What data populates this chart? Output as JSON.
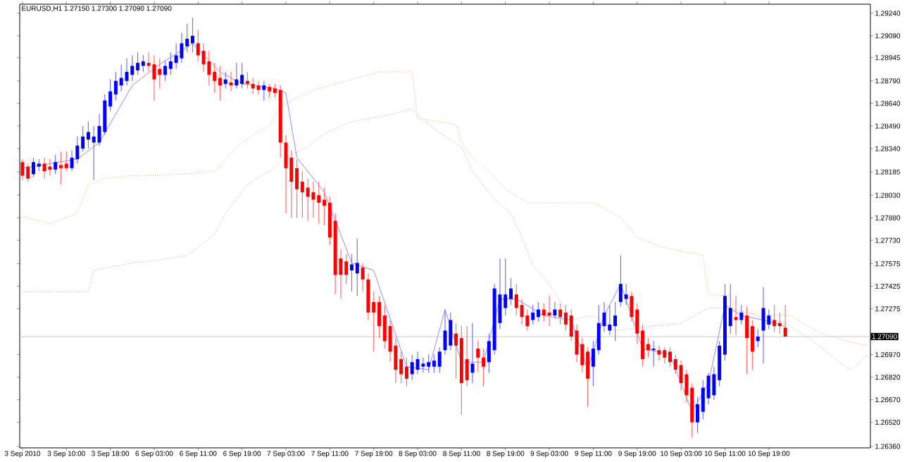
{
  "chart_data": {
    "type": "candlestick",
    "title": "EURUSD,H1  1.27150 1.27300 1.27090 1.27090",
    "categories": [
      "3 Sep 2010",
      null,
      null,
      null,
      null,
      null,
      null,
      null,
      "3 Sep 10:00",
      null,
      null,
      null,
      null,
      null,
      null,
      null,
      "3 Sep 18:00",
      null,
      null,
      null,
      null,
      null,
      null,
      null,
      "6 Sep 03:00",
      null,
      null,
      null,
      null,
      null,
      null,
      null,
      "6 Sep 11:00",
      null,
      null,
      null,
      null,
      null,
      null,
      null,
      "6 Sep 19:00",
      null,
      null,
      null,
      null,
      null,
      null,
      null,
      "7 Sep 03:00",
      null,
      null,
      null,
      null,
      null,
      null,
      null,
      "7 Sep 11:00",
      null,
      null,
      null,
      null,
      null,
      null,
      null,
      "7 Sep 19:00",
      null,
      null,
      null,
      null,
      null,
      null,
      null,
      "8 Sep 03:00",
      null,
      null,
      null,
      null,
      null,
      null,
      null,
      "8 Sep 11:00",
      null,
      null,
      null,
      null,
      null,
      null,
      null,
      "8 Sep 19:00",
      null,
      null,
      null,
      null,
      null,
      null,
      null,
      "9 Sep 03:00",
      null,
      null,
      null,
      null,
      null,
      null,
      null,
      "9 Sep 11:00",
      null,
      null,
      null,
      null,
      null,
      null,
      null,
      "9 Sep 19:00",
      null,
      null,
      null,
      null,
      null,
      null,
      null,
      "10 Sep 03:00",
      null,
      null,
      null,
      null,
      null,
      null,
      null,
      "10 Sep 11:00",
      null,
      null,
      null,
      null,
      null,
      null,
      null,
      "10 Sep 19:00",
      null,
      null,
      null,
      null,
      null,
      null,
      null,
      null,
      null,
      null,
      null,
      null,
      null,
      null,
      null,
      null,
      null,
      null
    ],
    "ohlc": [
      [
        1.2825,
        1.2827,
        1.2813,
        1.2816
      ],
      [
        1.2822,
        1.2824,
        1.2812,
        1.2814
      ],
      [
        1.2817,
        1.2828,
        1.2815,
        1.2825
      ],
      [
        1.2822,
        1.2827,
        1.2819,
        1.2824
      ],
      [
        1.2824,
        1.2828,
        1.2814,
        1.2819
      ],
      [
        1.2822,
        1.2827,
        1.2816,
        1.282
      ],
      [
        1.282,
        1.283,
        1.2817,
        1.2825
      ],
      [
        1.2823,
        1.2832,
        1.281,
        1.2821
      ],
      [
        1.2824,
        1.2832,
        1.2819,
        1.2821
      ],
      [
        1.2821,
        1.2833,
        1.2819,
        1.2828
      ],
      [
        1.2827,
        1.2842,
        1.2824,
        1.2836
      ],
      [
        1.2834,
        1.2849,
        1.2832,
        1.2842
      ],
      [
        1.284,
        1.2852,
        1.2834,
        1.2845
      ],
      [
        1.2838,
        1.2849,
        1.2813,
        1.2842
      ],
      [
        1.2838,
        1.2857,
        1.2836,
        1.2849
      ],
      [
        1.2845,
        1.287,
        1.2843,
        1.2866
      ],
      [
        1.2862,
        1.288,
        1.2859,
        1.2872
      ],
      [
        1.287,
        1.2885,
        1.2866,
        1.2879
      ],
      [
        1.2876,
        1.289,
        1.2872,
        1.2881
      ],
      [
        1.2879,
        1.2894,
        1.2876,
        1.2885
      ],
      [
        1.2883,
        1.2896,
        1.2879,
        1.2889
      ],
      [
        1.2886,
        1.2898,
        1.2883,
        1.2891
      ],
      [
        1.2889,
        1.2896,
        1.2885,
        1.2892
      ],
      [
        1.2891,
        1.2898,
        1.2885,
        1.2889
      ],
      [
        1.289,
        1.2896,
        1.2866,
        1.288
      ],
      [
        1.2887,
        1.2894,
        1.2874,
        1.2883
      ],
      [
        1.2883,
        1.2892,
        1.2879,
        1.2889
      ],
      [
        1.2887,
        1.2898,
        1.2883,
        1.2892
      ],
      [
        1.2891,
        1.2904,
        1.2887,
        1.2896
      ],
      [
        1.2894,
        1.2911,
        1.2891,
        1.2904
      ],
      [
        1.2902,
        1.2917,
        1.2898,
        1.2907
      ],
      [
        1.2904,
        1.2921,
        1.2898,
        1.2909
      ],
      [
        1.2904,
        1.2913,
        1.2892,
        1.2896
      ],
      [
        1.2899,
        1.2904,
        1.2885,
        1.289
      ],
      [
        1.2892,
        1.2899,
        1.2876,
        1.2883
      ],
      [
        1.2885,
        1.2891,
        1.2871,
        1.2879
      ],
      [
        1.2881,
        1.2889,
        1.2866,
        1.2876
      ],
      [
        1.2877,
        1.2885,
        1.2874,
        1.288
      ],
      [
        1.2878,
        1.2885,
        1.2872,
        1.2876
      ],
      [
        1.2876,
        1.2891,
        1.2874,
        1.288
      ],
      [
        1.2877,
        1.2891,
        1.2874,
        1.2883
      ],
      [
        1.2879,
        1.2885,
        1.2874,
        1.2877
      ],
      [
        1.2877,
        1.2881,
        1.287,
        1.2874
      ],
      [
        1.2876,
        1.2879,
        1.287,
        1.2873
      ],
      [
        1.2873,
        1.2879,
        1.2866,
        1.2876
      ],
      [
        1.2875,
        1.2877,
        1.2868,
        1.2872
      ],
      [
        1.2874,
        1.2877,
        1.2868,
        1.2871
      ],
      [
        1.2873,
        1.2876,
        1.2828,
        1.2838
      ],
      [
        1.2838,
        1.2843,
        1.2791,
        1.2821
      ],
      [
        1.2828,
        1.2833,
        1.2788,
        1.2812
      ],
      [
        1.2821,
        1.2827,
        1.2788,
        1.2807
      ],
      [
        1.2812,
        1.2819,
        1.2788,
        1.2805
      ],
      [
        1.2808,
        1.2814,
        1.2786,
        1.2802
      ],
      [
        1.2805,
        1.2812,
        1.2788,
        1.28
      ],
      [
        1.2803,
        1.2812,
        1.2784,
        1.2798
      ],
      [
        1.28,
        1.2808,
        1.2783,
        1.2796
      ],
      [
        1.2798,
        1.2802,
        1.277,
        1.2775
      ],
      [
        1.2786,
        1.2791,
        1.2737,
        1.275
      ],
      [
        1.2761,
        1.2767,
        1.2734,
        1.275
      ],
      [
        1.2759,
        1.2764,
        1.2744,
        1.275
      ],
      [
        1.2753,
        1.2764,
        1.2739,
        1.2757
      ],
      [
        1.2751,
        1.2774,
        1.2736,
        1.2758
      ],
      [
        1.2755,
        1.2758,
        1.2739,
        1.2747
      ],
      [
        1.2747,
        1.2751,
        1.272,
        1.2725
      ],
      [
        1.2732,
        1.2739,
        1.2699,
        1.2725
      ],
      [
        1.2732,
        1.2736,
        1.2708,
        1.2716
      ],
      [
        1.2723,
        1.273,
        1.2701,
        1.2706
      ],
      [
        1.2716,
        1.272,
        1.2692,
        1.2699
      ],
      [
        1.2703,
        1.2708,
        1.2678,
        1.2687
      ],
      [
        1.2694,
        1.2699,
        1.2678,
        1.2684
      ],
      [
        1.2689,
        1.2695,
        1.2676,
        1.2681
      ],
      [
        1.2684,
        1.2697,
        1.268,
        1.2692
      ],
      [
        1.2687,
        1.2699,
        1.2684,
        1.2694
      ],
      [
        1.2689,
        1.2695,
        1.2685,
        1.2691
      ],
      [
        1.2689,
        1.2697,
        1.2685,
        1.2692
      ],
      [
        1.2689,
        1.2697,
        1.2685,
        1.2693
      ],
      [
        1.2689,
        1.2702,
        1.2685,
        1.2699
      ],
      [
        1.27,
        1.2727,
        1.2697,
        1.2713
      ],
      [
        1.2703,
        1.2725,
        1.27,
        1.272
      ],
      [
        1.2711,
        1.2718,
        1.2681,
        1.2703
      ],
      [
        1.2708,
        1.2716,
        1.2657,
        1.2678
      ],
      [
        1.2694,
        1.2716,
        1.2676,
        1.268
      ],
      [
        1.2685,
        1.2718,
        1.2678,
        1.2691
      ],
      [
        1.2701,
        1.2706,
        1.2685,
        1.2695
      ],
      [
        1.2695,
        1.2701,
        1.2676,
        1.2689
      ],
      [
        1.2692,
        1.2711,
        1.2685,
        1.2706
      ],
      [
        1.27,
        1.2744,
        1.2697,
        1.2741
      ],
      [
        1.2718,
        1.2761,
        1.2714,
        1.2737
      ],
      [
        1.2728,
        1.2761,
        1.2723,
        1.2737
      ],
      [
        1.2734,
        1.2748,
        1.273,
        1.2741
      ],
      [
        1.2737,
        1.2744,
        1.2723,
        1.2728
      ],
      [
        1.273,
        1.2734,
        1.2717,
        1.2722
      ],
      [
        1.2723,
        1.2727,
        1.2713,
        1.2716
      ],
      [
        1.272,
        1.273,
        1.2717,
        1.2725
      ],
      [
        1.2722,
        1.2732,
        1.2719,
        1.2727
      ],
      [
        1.2727,
        1.2731,
        1.2719,
        1.2723
      ],
      [
        1.2725,
        1.2736,
        1.2716,
        1.2723
      ],
      [
        1.2723,
        1.2732,
        1.2721,
        1.2727
      ],
      [
        1.2727,
        1.2731,
        1.2717,
        1.2722
      ],
      [
        1.2725,
        1.273,
        1.2713,
        1.2717
      ],
      [
        1.2723,
        1.2727,
        1.2706,
        1.2709
      ],
      [
        1.2713,
        1.2717,
        1.2692,
        1.2697
      ],
      [
        1.2704,
        1.2708,
        1.2685,
        1.269
      ],
      [
        1.2699,
        1.2702,
        1.2662,
        1.2681
      ],
      [
        1.2689,
        1.2706,
        1.2676,
        1.2701
      ],
      [
        1.27,
        1.273,
        1.2697,
        1.2718
      ],
      [
        1.2716,
        1.2732,
        1.2712,
        1.2725
      ],
      [
        1.2713,
        1.273,
        1.271,
        1.2717
      ],
      [
        1.2716,
        1.2732,
        1.2706,
        1.2723
      ],
      [
        1.2732,
        1.2763,
        1.2729,
        1.2744
      ],
      [
        1.2734,
        1.2744,
        1.273,
        1.2737
      ],
      [
        1.2736,
        1.2739,
        1.2719,
        1.2722
      ],
      [
        1.2727,
        1.2731,
        1.2704,
        1.2711
      ],
      [
        1.2713,
        1.2717,
        1.2689,
        1.2694
      ],
      [
        1.2704,
        1.2708,
        1.2695,
        1.27
      ],
      [
        1.27,
        1.2706,
        1.2689,
        1.2701
      ],
      [
        1.27,
        1.2703,
        1.2693,
        1.2697
      ],
      [
        1.27,
        1.2702,
        1.2691,
        1.2695
      ],
      [
        1.2699,
        1.2702,
        1.2689,
        1.2692
      ],
      [
        1.2694,
        1.2697,
        1.2684,
        1.2687
      ],
      [
        1.269,
        1.2693,
        1.2673,
        1.2678
      ],
      [
        1.2684,
        1.2687,
        1.2665,
        1.267
      ],
      [
        1.2675,
        1.2678,
        1.2642,
        1.2652
      ],
      [
        1.2652,
        1.2669,
        1.2645,
        1.2664
      ],
      [
        1.2659,
        1.268,
        1.2654,
        1.2675
      ],
      [
        1.2668,
        1.2685,
        1.2664,
        1.2683
      ],
      [
        1.267,
        1.2689,
        1.2667,
        1.2684
      ],
      [
        1.268,
        1.2706,
        1.2676,
        1.2703
      ],
      [
        1.2697,
        1.2744,
        1.2693,
        1.2736
      ],
      [
        1.2716,
        1.2744,
        1.2711,
        1.2728
      ],
      [
        1.2722,
        1.2736,
        1.271,
        1.272
      ],
      [
        1.272,
        1.273,
        1.2717,
        1.2725
      ],
      [
        1.2723,
        1.2729,
        1.2684,
        1.2708
      ],
      [
        1.2716,
        1.272,
        1.2687,
        1.2699
      ],
      [
        1.2706,
        1.2714,
        1.2702,
        1.2709
      ],
      [
        1.2713,
        1.2742,
        1.2691,
        1.2728
      ],
      [
        1.2717,
        1.2727,
        1.2714,
        1.2723
      ],
      [
        1.272,
        1.273,
        1.2712,
        1.2716
      ],
      [
        1.2718,
        1.2725,
        1.2711,
        1.2716
      ],
      [
        1.2715,
        1.273,
        1.2709,
        1.2709
      ],
      null,
      null,
      null,
      null,
      null,
      null,
      null,
      null,
      null,
      null,
      null,
      null,
      null,
      null,
      null
    ],
    "colors": [
      "#ff0000",
      "#ff0000",
      "#0000ff",
      "#0000ff",
      "#ff0000",
      "#ff0000",
      "#0000ff",
      "#ff0000",
      "#ff0000",
      "#0000ff",
      "#0000ff",
      "#0000ff",
      "#0000ff",
      "#0000ff",
      "#0000ff",
      "#0000ff",
      "#0000ff",
      "#0000ff",
      "#0000ff",
      "#0000ff",
      "#0000ff",
      "#0000ff",
      "#0000ff",
      "#ff0000",
      "#ff0000",
      "#ff0000",
      "#0000ff",
      "#0000ff",
      "#0000ff",
      "#0000ff",
      "#0000ff",
      "#0000ff",
      "#ff0000",
      "#ff0000",
      "#ff0000",
      "#ff0000",
      "#ff0000",
      "#0000ff",
      "#ff0000",
      "#0000ff",
      "#0000ff",
      "#ff0000",
      "#ff0000",
      "#ff0000",
      "#0000ff",
      "#ff0000",
      "#ff0000",
      "#ff0000",
      "#ff0000",
      "#ff0000",
      "#ff0000",
      "#ff0000",
      "#ff0000",
      "#ff0000",
      "#ff0000",
      "#ff0000",
      "#ff0000",
      "#ff0000",
      "#ff0000",
      "#ff0000",
      "#0000ff",
      "#0000ff",
      "#ff0000",
      "#ff0000",
      "#ff0000",
      "#ff0000",
      "#ff0000",
      "#ff0000",
      "#ff0000",
      "#ff0000",
      "#ff0000",
      "#0000ff",
      "#0000ff",
      "#0000ff",
      "#0000ff",
      "#0000ff",
      "#0000ff",
      "#0000ff",
      "#0000ff",
      "#ff0000",
      "#ff0000",
      "#ff0000",
      "#0000ff",
      "#ff0000",
      "#ff0000",
      "#0000ff",
      "#0000ff",
      "#0000ff",
      "#0000ff",
      "#0000ff",
      "#ff0000",
      "#ff0000",
      "#ff0000",
      "#0000ff",
      "#0000ff",
      "#ff0000",
      "#ff0000",
      "#0000ff",
      "#ff0000",
      "#ff0000",
      "#ff0000",
      "#ff0000",
      "#ff0000",
      "#ff0000",
      "#0000ff",
      "#0000ff",
      "#0000ff",
      "#0000ff",
      "#0000ff",
      "#0000ff",
      "#0000ff",
      "#ff0000",
      "#ff0000",
      "#ff0000",
      "#ff0000",
      "#0000ff",
      "#ff0000",
      "#ff0000",
      "#ff0000",
      "#ff0000",
      "#ff0000",
      "#ff0000",
      "#ff0000",
      "#0000ff",
      "#0000ff",
      "#0000ff",
      "#0000ff",
      "#0000ff",
      "#0000ff",
      "#0000ff",
      "#ff0000",
      "#0000ff",
      "#ff0000",
      "#ff0000",
      "#0000ff",
      "#0000ff",
      "#0000ff",
      "#ff0000",
      "#ff0000",
      "#ff0000",
      null,
      null,
      null,
      null,
      null,
      null,
      null,
      null,
      null,
      null,
      null,
      null,
      null,
      null,
      null
    ],
    "series": [
      {
        "type": "line",
        "color": "#f4a460",
        "line_style": "dotted",
        "values": [
          1.2789,
          null,
          null,
          null,
          null,
          1.2784,
          null,
          null,
          null,
          null,
          1.2791,
          null,
          1.281,
          null,
          null,
          1.2814,
          null,
          null,
          null,
          null,
          1.2816,
          null,
          null,
          null,
          null,
          null,
          null,
          null,
          null,
          null,
          1.2817,
          null,
          null,
          null,
          null,
          1.2819,
          null,
          1.2827,
          null,
          null,
          1.2838,
          null,
          1.2843,
          null,
          null,
          1.2849,
          null,
          1.2862,
          null,
          null,
          1.2868,
          null,
          null,
          null,
          1.2874,
          null,
          null,
          null,
          null,
          null,
          1.288,
          null,
          null,
          null,
          null,
          1.2885,
          null,
          null,
          null,
          null,
          null,
          1.2885,
          1.2854,
          null,
          null,
          null,
          null,
          null,
          null,
          1.285,
          1.2838,
          null,
          1.2828,
          null,
          null,
          1.2819,
          null,
          null,
          1.2807,
          null,
          null,
          null,
          1.2798,
          null,
          null,
          null,
          null,
          null,
          null,
          null,
          null,
          null,
          null,
          null,
          1.2798,
          null,
          null,
          null,
          null,
          1.2788,
          null,
          null,
          1.2775,
          null,
          null,
          null,
          1.2769,
          null,
          null,
          null,
          null,
          null,
          null,
          null,
          1.2763,
          1.2737,
          null,
          null,
          null,
          1.2736,
          1.2725,
          null,
          null,
          null,
          null,
          null,
          null,
          null,
          null,
          null,
          1.2723,
          null,
          null,
          null,
          null,
          1.2712,
          null,
          null,
          null,
          null,
          1.2706,
          null,
          null,
          null,
          1.2703
        ]
      },
      {
        "type": "line",
        "color": "#b8a0b8",
        "line_style": "dotted",
        "values": [
          1.2739,
          null,
          null,
          null,
          null,
          null,
          null,
          null,
          null,
          null,
          null,
          null,
          1.2739,
          1.2753,
          null,
          null,
          null,
          null,
          null,
          null,
          1.2758,
          null,
          null,
          null,
          null,
          1.276,
          null,
          null,
          null,
          null,
          1.2763,
          null,
          null,
          null,
          null,
          1.2777,
          null,
          1.2791,
          null,
          null,
          null,
          1.281,
          null,
          null,
          null,
          1.2819,
          null,
          null,
          1.2828,
          null,
          null,
          null,
          1.2835,
          null,
          null,
          1.2844,
          null,
          null,
          null,
          null,
          1.2852,
          null,
          null,
          null,
          null,
          1.2855,
          null,
          null,
          null,
          null,
          null,
          1.286,
          null,
          null,
          null,
          1.2847,
          null,
          null,
          null,
          null,
          1.2835,
          null,
          1.2819,
          null,
          null,
          null,
          1.28,
          null,
          null,
          1.2791,
          null,
          1.2775,
          null,
          1.2756,
          null,
          null,
          1.2744,
          null,
          null,
          null,
          1.272,
          null,
          null,
          null,
          1.2723,
          null,
          null,
          null,
          1.2713,
          null,
          null,
          null,
          null,
          null,
          null,
          null,
          null,
          null,
          null,
          null,
          1.2718,
          null,
          null,
          null,
          null,
          1.2728,
          null,
          null,
          null,
          1.2728,
          null,
          null,
          null,
          null,
          null,
          null,
          null,
          null,
          null,
          1.2718,
          null,
          null,
          null,
          null,
          1.2706,
          null,
          null,
          null,
          null,
          null,
          1.2689,
          1.2687,
          null,
          null,
          1.2697
        ]
      },
      {
        "type": "line",
        "color": "#8c8cff",
        "line_style": "solid",
        "values": [
          1.2821,
          null,
          null,
          null,
          null,
          null,
          null,
          null,
          null,
          null,
          1.2827,
          null,
          null,
          null,
          1.2838,
          null,
          null,
          null,
          null,
          null,
          1.2876,
          null,
          null,
          null,
          null,
          1.289,
          null,
          null,
          null,
          null,
          null,
          1.2904,
          null,
          null,
          null,
          null,
          1.2885,
          null,
          null,
          null,
          1.2877,
          null,
          null,
          null,
          null,
          null,
          1.2874,
          null,
          1.2871,
          null,
          1.2828,
          null,
          null,
          null,
          null,
          1.2805,
          null,
          null,
          null,
          null,
          1.2758,
          null,
          null,
          null,
          1.2753,
          null,
          null,
          null,
          null,
          null,
          1.2689,
          null,
          null,
          null,
          1.2687,
          null,
          null,
          1.2727,
          null,
          null,
          1.2692,
          null,
          null,
          null,
          1.2692,
          null,
          null,
          1.2734,
          null,
          null,
          1.2734,
          null,
          null,
          null,
          null,
          1.2723,
          null,
          null,
          null,
          null,
          1.272,
          null,
          null,
          1.2687,
          null,
          null,
          1.2723,
          null,
          null,
          1.2744,
          null,
          null,
          null,
          1.2701,
          null,
          null,
          null,
          null,
          1.2697,
          null,
          null,
          null,
          1.2659,
          null,
          null,
          1.2678,
          null,
          null,
          1.273,
          null,
          null,
          1.2723,
          null,
          null,
          null,
          1.272,
          null,
          null,
          null,
          1.2716,
          null,
          null,
          null,
          null,
          null,
          null,
          null,
          null,
          null,
          null,
          null,
          null,
          null,
          null,
          null
        ]
      }
    ],
    "ylim": [
      1.2635,
      1.293
    ],
    "yticks": [
      {
        "value": 1.2636,
        "label": "1.26360"
      },
      {
        "value": 1.2652,
        "label": "1.26520"
      },
      {
        "value": 1.2667,
        "label": "1.26670"
      },
      {
        "value": 1.2682,
        "label": "1.26820"
      },
      {
        "value": 1.2697,
        "label": "1.26970"
      },
      {
        "value": 1.27275,
        "label": "1.27275"
      },
      {
        "value": 1.27425,
        "label": "1.27425"
      },
      {
        "value": 1.27575,
        "label": "1.27575"
      },
      {
        "value": 1.2773,
        "label": "1.27730"
      },
      {
        "value": 1.2788,
        "label": "1.27880"
      },
      {
        "value": 1.2803,
        "label": "1.28030"
      },
      {
        "value": 1.28185,
        "label": "1.28185"
      },
      {
        "value": 1.2834,
        "label": "1.28340"
      },
      {
        "value": 1.2849,
        "label": "1.28490"
      },
      {
        "value": 1.2864,
        "label": "1.28640"
      },
      {
        "value": 1.2879,
        "label": "1.28790"
      },
      {
        "value": 1.28945,
        "label": "1.28945"
      },
      {
        "value": 1.2909,
        "label": "1.29090"
      },
      {
        "value": 1.2924,
        "label": "1.29240"
      }
    ],
    "ref_lines": [
      {
        "axis": "y",
        "value": 1.2709,
        "label": "1.27090",
        "color": "#c8c8c8"
      }
    ]
  }
}
